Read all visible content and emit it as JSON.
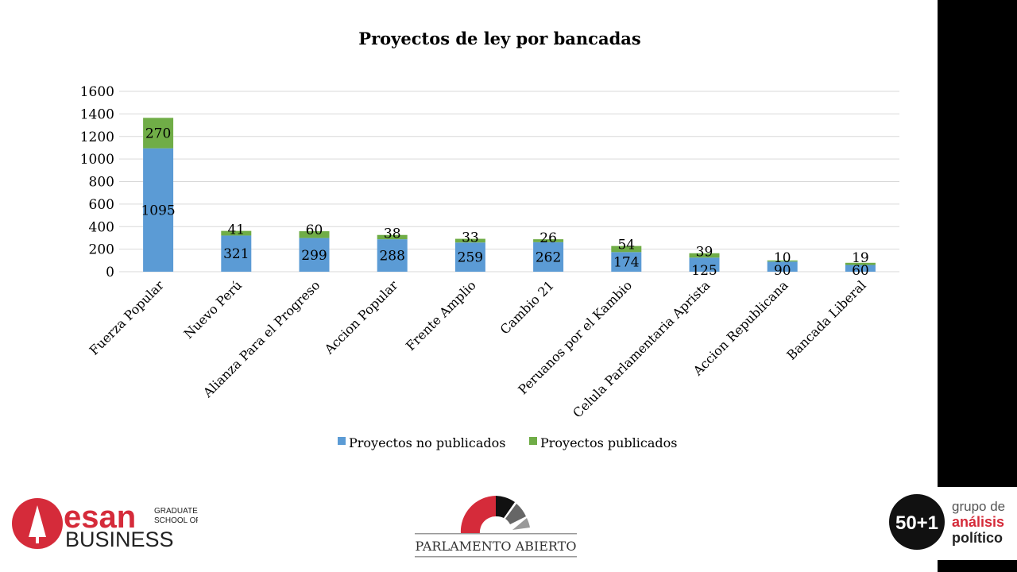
{
  "chart_data": {
    "type": "bar",
    "stacked": true,
    "title": "Proyectos de ley por bancadas",
    "categories": [
      "Fuerza Popular",
      "Nuevo Perú",
      "Alianza Para el Progreso",
      "Accion Popular",
      "Frente Amplio",
      "Cambio 21",
      "Peruanos por el Kambio",
      "Celula Parlamentaria Aprista",
      "Accion Republicana",
      "Bancada Liberal"
    ],
    "series": [
      {
        "name": "Proyectos no publicados",
        "color": "#5b9bd5",
        "values": [
          1095,
          321,
          299,
          288,
          259,
          262,
          174,
          125,
          90,
          60
        ]
      },
      {
        "name": "Proyectos publicados",
        "color": "#70ad47",
        "values": [
          270,
          41,
          60,
          38,
          33,
          26,
          54,
          39,
          10,
          19
        ]
      }
    ],
    "ylim": [
      0,
      1600
    ],
    "yticks": [
      0,
      200,
      400,
      600,
      800,
      1000,
      1200,
      1400,
      1600
    ],
    "grid": true,
    "legend": "bottom",
    "xlabel": "",
    "ylabel": ""
  },
  "logos": {
    "esan": {
      "name": "esan",
      "sub1": "GRADUATE",
      "sub2": "SCHOOL OF",
      "sub3": "BUSINESS"
    },
    "parlamento": {
      "text": "PARLAMENTO ABIERTO"
    },
    "grupo": {
      "badge": "50+1",
      "line1": "grupo de",
      "line2": "análisis",
      "line3": "político"
    }
  }
}
